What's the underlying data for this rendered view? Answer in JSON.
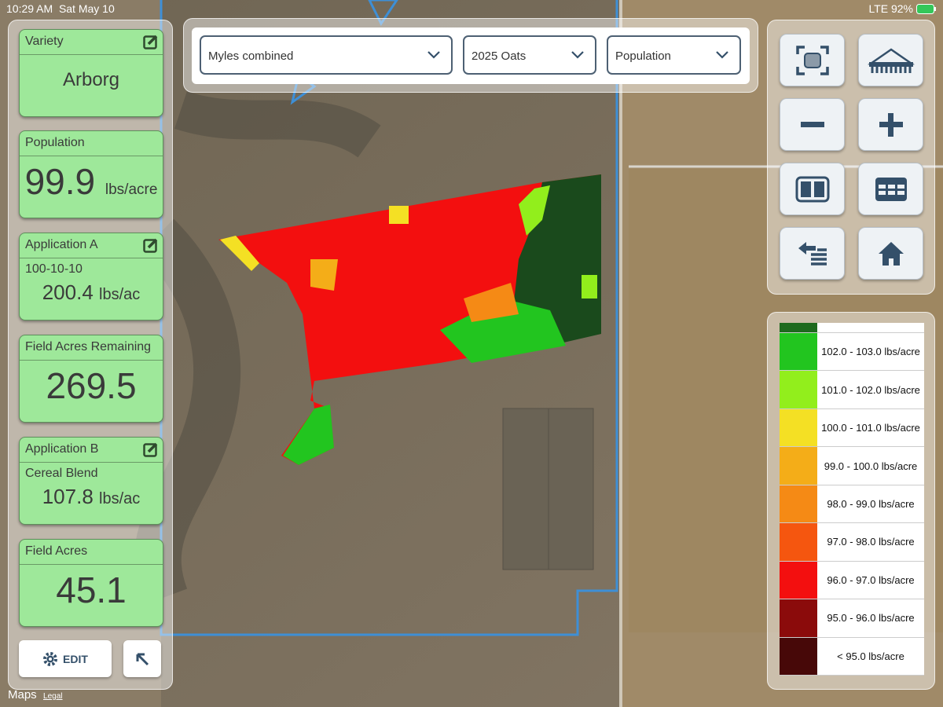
{
  "status_bar": {
    "time": "10:29 AM",
    "date": "Sat May 10",
    "network": "LTE",
    "battery": "92%"
  },
  "cards": [
    {
      "title": "Variety",
      "value": "Arborg",
      "editable": true
    },
    {
      "title": "Population",
      "value": "99.9",
      "unit": "lbs/acre"
    },
    {
      "title": "Application A",
      "subtitle": "100-10-10",
      "value": "200.4",
      "unit": "lbs/ac",
      "editable": true
    },
    {
      "title": "Field Acres Remaining",
      "value": "269.5"
    },
    {
      "title": "Application B",
      "subtitle": "Cereal Blend",
      "value": "107.8",
      "unit": "lbs/ac",
      "editable": true
    },
    {
      "title": "Field Acres",
      "value": "45.1"
    }
  ],
  "edit_button": "EDIT",
  "dropdowns": [
    "Myles combined",
    "2025 Oats",
    "Population"
  ],
  "legend": [
    {
      "color": "#1e6a1e"
    },
    {
      "label": "102.0 - 103.0 lbs/acre",
      "color": "#22c51f"
    },
    {
      "label": "101.0 - 102.0 lbs/acre",
      "color": "#92ee1c"
    },
    {
      "label": "100.0 - 101.0 lbs/acre",
      "color": "#f4e024"
    },
    {
      "label": "99.0 - 100.0 lbs/acre",
      "color": "#f4ad18"
    },
    {
      "label": "98.0 - 99.0 lbs/acre",
      "color": "#f58a15"
    },
    {
      "label": "97.0 - 98.0 lbs/acre",
      "color": "#f5560f"
    },
    {
      "label": "96.0 - 97.0 lbs/acre",
      "color": "#f30f0f"
    },
    {
      "label": "95.0 - 96.0 lbs/acre",
      "color": "#8b0b0b"
    },
    {
      "label": "< 95.0 lbs/acre",
      "color": "#470808"
    }
  ],
  "footer": {
    "maps": "Maps",
    "legal": "Legal"
  }
}
